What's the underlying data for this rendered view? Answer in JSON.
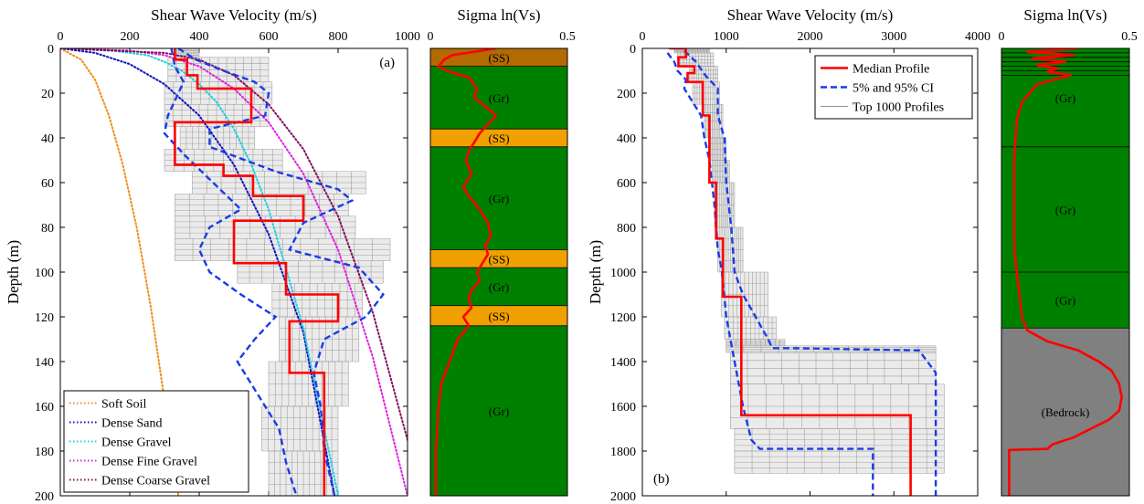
{
  "chart_data": [
    {
      "id": "a",
      "type": "line",
      "panel_label": "(a)",
      "xlabel": "Shear Wave Velocity (m/s)",
      "ylabel": "Depth (m)",
      "xlim": [
        0,
        1000
      ],
      "ylim": [
        200,
        0
      ],
      "x_ticks": [
        "0",
        "200",
        "400",
        "600",
        "800",
        "1000"
      ],
      "y_ticks": [
        "0",
        "20",
        "40",
        "60",
        "80",
        "100",
        "120",
        "140",
        "160",
        "180",
        "200"
      ],
      "x_tick_values": [
        0,
        200,
        400,
        600,
        800,
        1000
      ],
      "y_tick_values": [
        0,
        20,
        40,
        60,
        80,
        100,
        120,
        140,
        160,
        180,
        200
      ],
      "legend_position": "bottom-left",
      "series": [
        {
          "name": "Soft Soil",
          "color": "#f28c1c",
          "style": "dotted",
          "x": [
            0,
            60,
            100,
            140,
            180,
            220,
            260,
            300,
            340
          ],
          "y": [
            0,
            5,
            14,
            30,
            52,
            80,
            115,
            157,
            200
          ]
        },
        {
          "name": "Dense Sand",
          "color": "#1010c0",
          "style": "dotted",
          "x": [
            0,
            100,
            200,
            300,
            400,
            500,
            600,
            700,
            790
          ],
          "y": [
            0,
            2,
            7,
            16,
            30,
            52,
            83,
            127,
            200
          ]
        },
        {
          "name": "Dense Gravel",
          "color": "#20d0e0",
          "style": "dotted",
          "x": [
            0,
            150,
            250,
            300,
            350,
            400,
            450,
            500,
            550,
            600,
            700,
            800
          ],
          "y": [
            0,
            1,
            3,
            6,
            10,
            16,
            24,
            36,
            52,
            72,
            125,
            200
          ]
        },
        {
          "name": "Dense Fine Gravel",
          "color": "#e020e0",
          "style": "dotted",
          "x": [
            0,
            200,
            300,
            400,
            500,
            600,
            700,
            800,
            900,
            1000
          ],
          "y": [
            0,
            1,
            3,
            8,
            18,
            33,
            56,
            90,
            138,
            200
          ]
        },
        {
          "name": "Dense Coarse Gravel",
          "color": "#801060",
          "style": "dotted",
          "x": [
            0,
            300,
            400,
            500,
            600,
            700,
            800,
            900,
            1000
          ],
          "y": [
            0,
            2,
            5,
            12,
            25,
            45,
            75,
            118,
            175
          ]
        },
        {
          "name": "",
          "color": "#ff0000",
          "style": "solid",
          "role": "median",
          "x": [
            330,
            330,
            365,
            365,
            395,
            395,
            550,
            550,
            330,
            330,
            470,
            470,
            555,
            555,
            700,
            700,
            500,
            500,
            650,
            650,
            800,
            800,
            660,
            660,
            760,
            760,
            760
          ],
          "y": [
            0,
            5,
            5,
            12,
            12,
            18,
            18,
            33,
            33,
            52,
            52,
            57,
            57,
            66,
            66,
            77,
            77,
            96,
            96,
            110,
            110,
            122,
            122,
            145,
            145,
            195,
            200
          ]
        },
        {
          "name": "",
          "color": "#1a3ce8",
          "style": "dashed",
          "role": "ci-low",
          "x": [
            320,
            330,
            355,
            340,
            310,
            300,
            360,
            440,
            520,
            430,
            400,
            430,
            520,
            620,
            560,
            510,
            570,
            630,
            650,
            680
          ],
          "y": [
            0,
            8,
            15,
            20,
            30,
            38,
            48,
            60,
            72,
            80,
            90,
            100,
            110,
            120,
            130,
            140,
            155,
            170,
            185,
            200
          ]
        },
        {
          "name": "",
          "color": "#1a3ce8",
          "style": "dashed",
          "role": "ci-high",
          "x": [
            340,
            390,
            470,
            560,
            600,
            590,
            430,
            430,
            620,
            800,
            840,
            700,
            660,
            860,
            930,
            880,
            760,
            730,
            750,
            760,
            790
          ],
          "y": [
            0,
            5,
            10,
            15,
            20,
            30,
            36,
            44,
            55,
            63,
            68,
            78,
            90,
            98,
            110,
            120,
            130,
            145,
            160,
            180,
            200
          ]
        },
        {
          "name": "",
          "color": "#909090",
          "style": "band",
          "role": "profiles",
          "x_min": [
            330,
            310,
            300,
            300,
            345,
            300,
            380,
            330,
            330,
            330,
            510,
            610,
            630,
            600,
            580,
            600
          ],
          "x_max": [
            400,
            600,
            610,
            600,
            560,
            640,
            880,
            830,
            850,
            950,
            930,
            870,
            860,
            830,
            800,
            800
          ],
          "y": [
            4,
            15,
            25,
            35,
            45,
            55,
            65,
            75,
            85,
            95,
            105,
            120,
            140,
            160,
            180,
            200
          ]
        }
      ]
    },
    {
      "id": "a-sigma",
      "type": "line",
      "title": "Sigma ln(Vs)",
      "xlim": [
        0,
        0.5
      ],
      "ylim": [
        200,
        0
      ],
      "x_ticks": [
        "0",
        "0.5"
      ],
      "x_tick_values": [
        0,
        0.5
      ],
      "layers": [
        {
          "label": "(SS)",
          "top": 0,
          "bottom": 8,
          "color": "#b36a00"
        },
        {
          "label": "(Gr)",
          "top": 8,
          "bottom": 36,
          "color": "#008000"
        },
        {
          "label": "(SS)",
          "top": 36,
          "bottom": 44,
          "color": "#f0a000"
        },
        {
          "label": "(Gr)",
          "top": 44,
          "bottom": 90,
          "color": "#008000"
        },
        {
          "label": "(SS)",
          "top": 90,
          "bottom": 98,
          "color": "#f0a000"
        },
        {
          "label": "(Gr)",
          "top": 98,
          "bottom": 115,
          "color": "#008000"
        },
        {
          "label": "(SS)",
          "top": 115,
          "bottom": 124,
          "color": "#f0a000"
        },
        {
          "label": "(Gr)",
          "top": 124,
          "bottom": 200,
          "color": "#008000"
        }
      ],
      "series": [
        {
          "name": "",
          "color": "#ff0000",
          "x": [
            0.24,
            0.08,
            0.05,
            0.03,
            0.06,
            0.14,
            0.17,
            0.16,
            0.2,
            0.24,
            0.21,
            0.18,
            0.16,
            0.14,
            0.13,
            0.15,
            0.12,
            0.14,
            0.18,
            0.21,
            0.22,
            0.2,
            0.21,
            0.19,
            0.17,
            0.18,
            0.15,
            0.14,
            0.15,
            0.12,
            0.14,
            0.1,
            0.07,
            0.04,
            0.03,
            0.02,
            0.02
          ],
          "y": [
            0,
            3,
            5,
            8,
            10,
            13,
            18,
            22,
            26,
            30,
            34,
            38,
            42,
            46,
            50,
            56,
            62,
            66,
            72,
            78,
            84,
            88,
            92,
            96,
            100,
            104,
            108,
            112,
            116,
            120,
            124,
            130,
            140,
            150,
            160,
            180,
            200
          ]
        }
      ]
    },
    {
      "id": "b",
      "type": "line",
      "panel_label": "(b)",
      "xlabel": "Shear Wave Velocity (m/s)",
      "ylabel": "Depth (m)",
      "xlim": [
        0,
        4000
      ],
      "ylim": [
        2000,
        0
      ],
      "x_ticks": [
        "0",
        "1000",
        "2000",
        "3000",
        "4000"
      ],
      "y_ticks": [
        "0",
        "200",
        "400",
        "600",
        "800",
        "1000",
        "1200",
        "1400",
        "1600",
        "1800",
        "2000"
      ],
      "x_tick_values": [
        0,
        1000,
        2000,
        3000,
        4000
      ],
      "y_tick_values": [
        0,
        200,
        400,
        600,
        800,
        1000,
        1200,
        1400,
        1600,
        1800,
        2000
      ],
      "legend_position": "top-right",
      "series": [
        {
          "name": "Median Profile",
          "color": "#ff0000",
          "style": "solid",
          "role": "median",
          "x": [
            320,
            520,
            520,
            430,
            430,
            620,
            620,
            540,
            540,
            720,
            720,
            800,
            800,
            880,
            880,
            960,
            960,
            1180,
            1180,
            3200,
            3200
          ],
          "y": [
            0,
            0,
            40,
            40,
            80,
            80,
            110,
            110,
            150,
            150,
            300,
            300,
            600,
            600,
            850,
            850,
            1110,
            1110,
            1640,
            1640,
            2000
          ]
        },
        {
          "name": "5% and 95% CI",
          "color": "#1a3ce8",
          "style": "dashed",
          "role": "ci-low",
          "x": [
            300,
            380,
            420,
            520,
            500,
            700,
            740,
            800,
            830,
            860,
            880,
            900,
            950,
            1000,
            1100,
            1200,
            1300,
            1400,
            2750,
            2750
          ],
          "y": [
            20,
            60,
            100,
            140,
            180,
            300,
            400,
            500,
            600,
            700,
            800,
            900,
            1000,
            1200,
            1400,
            1600,
            1750,
            1790,
            1790,
            2000
          ]
        },
        {
          "name": "",
          "color": "#1a3ce8",
          "style": "dashed",
          "role": "ci-high",
          "x": [
            500,
            640,
            750,
            900,
            900,
            980,
            1000,
            1060,
            1100,
            1200,
            1350,
            1500,
            1550,
            1800,
            3300,
            3500,
            3500
          ],
          "y": [
            10,
            60,
            120,
            180,
            300,
            400,
            600,
            800,
            1000,
            1100,
            1200,
            1300,
            1340,
            1340,
            1350,
            1450,
            2000
          ]
        },
        {
          "name": "Top 1000 Profiles",
          "color": "#909090",
          "style": "band",
          "role": "profiles",
          "x_min": [
            380,
            420,
            560,
            600,
            740,
            800,
            830,
            860,
            900,
            940,
            980,
            1000,
            1000,
            1050,
            1050,
            1100,
            1100
          ],
          "x_max": [
            800,
            850,
            900,
            920,
            960,
            1000,
            1040,
            1100,
            1200,
            1500,
            1600,
            1700,
            3500,
            3500,
            3600,
            3600,
            3600
          ],
          "y": [
            20,
            80,
            150,
            250,
            400,
            500,
            600,
            800,
            1000,
            1200,
            1300,
            1330,
            1360,
            1500,
            1700,
            1800,
            1900
          ]
        }
      ]
    },
    {
      "id": "b-sigma",
      "type": "line",
      "title": "Sigma ln(Vs)",
      "xlim": [
        0,
        0.5
      ],
      "ylim": [
        2000,
        0
      ],
      "x_ticks": [
        "0",
        "0.5"
      ],
      "x_tick_values": [
        0,
        0.5
      ],
      "layers": [
        {
          "label": "(Gr)",
          "top": 0,
          "bottom": 440,
          "color": "#008000"
        },
        {
          "label": "(Gr)",
          "top": 440,
          "bottom": 1000,
          "color": "#008000"
        },
        {
          "label": "(Gr)",
          "top": 1000,
          "bottom": 1250,
          "color": "#008000"
        },
        {
          "label": "(Bedrock)",
          "top": 1250,
          "bottom": 2000,
          "color": "#808080"
        }
      ],
      "thin_layer_lines": [
        20,
        40,
        60,
        80,
        100,
        120
      ],
      "series": [
        {
          "name": "",
          "color": "#ff0000",
          "x": [
            0.3,
            0.1,
            0.28,
            0.12,
            0.25,
            0.14,
            0.22,
            0.18,
            0.27,
            0.14,
            0.08,
            0.06,
            0.05,
            0.05,
            0.05,
            0.06,
            0.07,
            0.08,
            0.1,
            0.18,
            0.3,
            0.38,
            0.43,
            0.46,
            0.47,
            0.46,
            0.42,
            0.35,
            0.28,
            0.2,
            0.18,
            0.03,
            0.03
          ],
          "y": [
            0,
            15,
            30,
            45,
            60,
            75,
            90,
            105,
            120,
            160,
            240,
            320,
            500,
            700,
            900,
            1000,
            1100,
            1200,
            1260,
            1310,
            1350,
            1400,
            1440,
            1500,
            1560,
            1620,
            1660,
            1700,
            1740,
            1770,
            1790,
            1795,
            2000
          ]
        }
      ]
    }
  ]
}
